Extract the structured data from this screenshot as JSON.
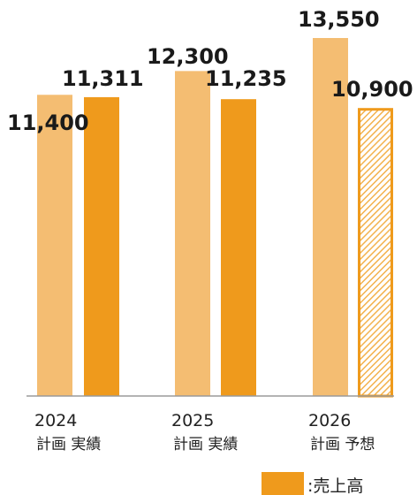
{
  "chart_data": {
    "type": "bar",
    "categories": [
      "2024",
      "2025",
      "2026"
    ],
    "sublabels": [
      "計画 実績",
      "計画 実績",
      "計画 予想"
    ],
    "bars": [
      {
        "year": "2024",
        "kind": "計画",
        "value": 11400,
        "label": "11,400",
        "style": "plan"
      },
      {
        "year": "2024",
        "kind": "実績",
        "value": 11311,
        "label": "11,311",
        "style": "actual"
      },
      {
        "year": "2025",
        "kind": "計画",
        "value": 12300,
        "label": "12,300",
        "style": "plan"
      },
      {
        "year": "2025",
        "kind": "実績",
        "value": 11235,
        "label": "11,235",
        "style": "actual"
      },
      {
        "year": "2026",
        "kind": "計画",
        "value": 13550,
        "label": "13,550",
        "style": "plan"
      },
      {
        "year": "2026",
        "kind": "予想",
        "value": 10900,
        "label": "10,900",
        "style": "forecast"
      }
    ],
    "ylim": [
      0,
      13550
    ],
    "legend": {
      "label": ":売上高",
      "placement": "bottom-right"
    },
    "colors": {
      "plan": "#f4bd72",
      "actual": "#ef9a1c",
      "forecast_border": "#ef9a1c",
      "forecast_hatch": "#f3b24d",
      "axis": "#9a9a9a"
    }
  }
}
